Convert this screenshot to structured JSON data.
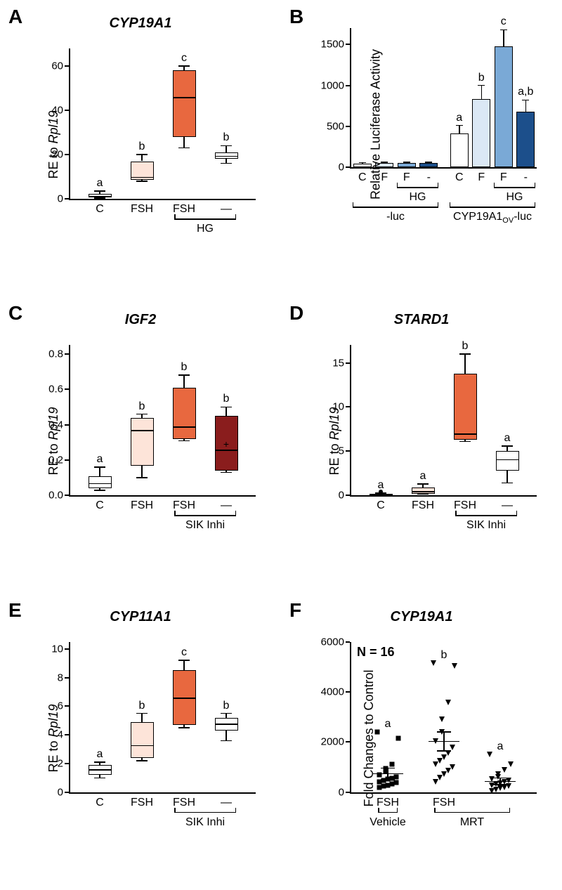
{
  "A": {
    "label": "A",
    "title": "CYP19A1",
    "ylabel": "RE to Rpl19",
    "ylim": [
      0,
      68
    ],
    "yticks": [
      0,
      20,
      40,
      60
    ],
    "xlabels": [
      "C",
      "FSH",
      "FSH",
      "—"
    ],
    "bracket": {
      "fromIdx": 2,
      "toIdx": 3,
      "label": "HG"
    },
    "boxes": [
      {
        "q1": 0.5,
        "med": 1.2,
        "q3": 2.2,
        "lo": 0.3,
        "hi": 3.5,
        "color": "#ffffff",
        "sig": "a"
      },
      {
        "q1": 8.5,
        "med": 10,
        "q3": 17,
        "lo": 8,
        "hi": 20,
        "color": "#fde4d9",
        "sig": "b"
      },
      {
        "q1": 28,
        "med": 46,
        "q3": 58,
        "lo": 23,
        "hi": 60,
        "color": "#e8683f",
        "sig": "c"
      },
      {
        "q1": 18,
        "med": 19.5,
        "q3": 21,
        "lo": 16,
        "hi": 24,
        "color": "#ffffff",
        "sig": "b"
      }
    ]
  },
  "B": {
    "label": "B",
    "title": "",
    "ylabel": "Relative Luciferase Activity",
    "ylim": [
      0,
      1700
    ],
    "yticks": [
      0,
      500,
      1000,
      1500
    ],
    "xlabels": [
      "C",
      "F",
      "F",
      "-",
      "C",
      "F",
      "F",
      "-"
    ],
    "brackets": [
      {
        "fromIdx": 2,
        "toIdx": 3,
        "label": "HG",
        "tier": 0
      },
      {
        "fromIdx": 6,
        "toIdx": 7,
        "label": "HG",
        "tier": 0
      },
      {
        "fromIdx": 0,
        "toIdx": 3,
        "label": "-luc",
        "tier": 1
      },
      {
        "fromIdx": 4,
        "toIdx": 7,
        "label": "CYP19A1ov-luc",
        "tier": 1,
        "sub": true
      }
    ],
    "bars": [
      {
        "val": 45,
        "err": 10,
        "color": "#ffffff"
      },
      {
        "val": 50,
        "err": 10,
        "color": "#dbe8f5"
      },
      {
        "val": 50,
        "err": 10,
        "color": "#7aa9d6"
      },
      {
        "val": 48,
        "err": 10,
        "color": "#1c4f8b"
      },
      {
        "val": 410,
        "err": 100,
        "color": "#ffffff",
        "sig": "a"
      },
      {
        "val": 830,
        "err": 170,
        "color": "#dbe8f5",
        "sig": "b"
      },
      {
        "val": 1480,
        "err": 200,
        "color": "#7aa9d6",
        "sig": "c"
      },
      {
        "val": 680,
        "err": 140,
        "color": "#1c4f8b",
        "sig": "a,b"
      }
    ]
  },
  "C": {
    "label": "C",
    "title": "IGF2",
    "ylabel": "RE to Rpl19",
    "ylim": [
      0,
      0.85
    ],
    "yticks": [
      0.0,
      0.2,
      0.4,
      0.6,
      0.8
    ],
    "ytick_fmt": "dec1",
    "xlabels": [
      "C",
      "FSH",
      "FSH",
      "—"
    ],
    "bracket": {
      "fromIdx": 2,
      "toIdx": 3,
      "label": "SIK Inhi"
    },
    "boxes": [
      {
        "q1": 0.04,
        "med": 0.07,
        "q3": 0.11,
        "lo": 0.03,
        "hi": 0.16,
        "color": "#ffffff",
        "sig": "a"
      },
      {
        "q1": 0.17,
        "med": 0.37,
        "q3": 0.44,
        "lo": 0.1,
        "hi": 0.46,
        "color": "#fde4d9",
        "sig": "b"
      },
      {
        "q1": 0.32,
        "med": 0.39,
        "q3": 0.61,
        "lo": 0.31,
        "hi": 0.68,
        "color": "#e8683f",
        "sig": "b"
      },
      {
        "q1": 0.14,
        "med": 0.26,
        "q3": 0.45,
        "lo": 0.13,
        "hi": 0.5,
        "color": "#8a1d1d",
        "sig": "b",
        "plus": 0.29
      }
    ]
  },
  "D": {
    "label": "D",
    "title": "STARD1",
    "ylabel": "RE to Rpl19",
    "ylim": [
      0,
      17
    ],
    "yticks": [
      0,
      5,
      10,
      15
    ],
    "xlabels": [
      "C",
      "FSH",
      "FSH",
      "—"
    ],
    "bracket": {
      "fromIdx": 2,
      "toIdx": 3,
      "label": "SIK Inhi"
    },
    "boxes": [
      {
        "q1": 0.08,
        "med": 0.12,
        "q3": 0.18,
        "lo": 0.05,
        "hi": 0.25,
        "color": "#ffffff",
        "sig": "a",
        "outlier": 0.45
      },
      {
        "q1": 0.2,
        "med": 0.5,
        "q3": 0.9,
        "lo": 0.15,
        "hi": 1.3,
        "color": "#fde4d9",
        "sig": "a"
      },
      {
        "q1": 6.3,
        "med": 7.0,
        "q3": 13.8,
        "lo": 6.1,
        "hi": 16,
        "color": "#e8683f",
        "sig": "b"
      },
      {
        "q1": 2.8,
        "med": 4.1,
        "q3": 5.0,
        "lo": 1.4,
        "hi": 5.6,
        "color": "#ffffff",
        "sig": "a"
      }
    ]
  },
  "E": {
    "label": "E",
    "title": "CYP11A1",
    "ylabel": "RE to Rpl19",
    "ylim": [
      0,
      10.5
    ],
    "yticks": [
      0,
      2,
      4,
      6,
      8,
      10
    ],
    "xlabels": [
      "C",
      "FSH",
      "FSH",
      "—"
    ],
    "bracket": {
      "fromIdx": 2,
      "toIdx": 3,
      "label": "SIK Inhi"
    },
    "boxes": [
      {
        "q1": 1.2,
        "med": 1.6,
        "q3": 1.9,
        "lo": 1.0,
        "hi": 2.1,
        "color": "#ffffff",
        "sig": "a"
      },
      {
        "q1": 2.4,
        "med": 3.3,
        "q3": 4.9,
        "lo": 2.2,
        "hi": 5.5,
        "color": "#fde4d9",
        "sig": "b"
      },
      {
        "q1": 4.7,
        "med": 6.6,
        "q3": 8.5,
        "lo": 4.5,
        "hi": 9.2,
        "color": "#e8683f",
        "sig": "c"
      },
      {
        "q1": 4.3,
        "med": 4.8,
        "q3": 5.2,
        "lo": 3.6,
        "hi": 5.5,
        "color": "#ffffff",
        "sig": "b"
      }
    ]
  },
  "F": {
    "label": "F",
    "title": "CYP19A1",
    "ylabel": "Fold Changes to Control",
    "n_text": "N = 16",
    "ylim": [
      0,
      6000
    ],
    "yticks": [
      0,
      2000,
      4000,
      6000
    ],
    "xlabels": [
      "FSH",
      "FSH",
      ""
    ],
    "brackets": [
      {
        "fromIdx": 0,
        "toIdx": 0,
        "label": "Vehicle",
        "tier": 0
      },
      {
        "fromIdx": 1,
        "toIdx": 2,
        "label": "MRT",
        "tier": 0
      }
    ],
    "groups": [
      {
        "mean": 730,
        "sem": 230,
        "sig": "a",
        "marker": "sq",
        "points": [
          180,
          230,
          280,
          330,
          370,
          420,
          470,
          520,
          560,
          620,
          700,
          820,
          950,
          1100,
          2150,
          2400
        ]
      },
      {
        "mean": 2020,
        "sem": 380,
        "sig": "b",
        "marker": "tri",
        "points": [
          420,
          580,
          720,
          860,
          1000,
          1120,
          1250,
          1400,
          1560,
          1780,
          2050,
          2400,
          2900,
          3570,
          5040,
          5150
        ]
      },
      {
        "mean": 430,
        "sem": 130,
        "sig": "a",
        "marker": "tri",
        "points": [
          60,
          100,
          150,
          200,
          240,
          280,
          320,
          360,
          400,
          460,
          520,
          600,
          720,
          900,
          1100,
          1500
        ]
      }
    ]
  }
}
